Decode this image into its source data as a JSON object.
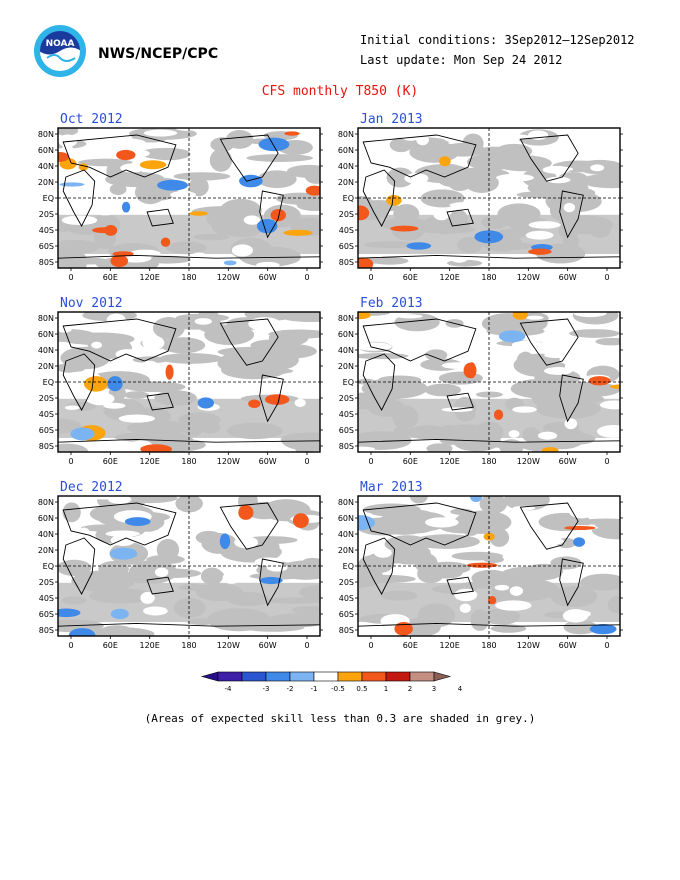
{
  "header": {
    "agency": "NWS/NCEP/CPC",
    "initial_conditions": "Initial conditions: 3Sep2012–12Sep2012",
    "last_update": "Last update: Mon Sep 24 2012",
    "title": "CFS monthly T850 (K)",
    "logo_icon": "noaa-logo-icon"
  },
  "axes": {
    "lat_labels": [
      "80N",
      "60N",
      "40N",
      "20N",
      "EQ",
      "20S",
      "40S",
      "60S",
      "80S"
    ],
    "lon_labels": [
      "0",
      "60E",
      "120E",
      "180",
      "120W",
      "60W",
      "0"
    ]
  },
  "panels": [
    {
      "title": "Oct 2012"
    },
    {
      "title": "Jan 2013"
    },
    {
      "title": "Nov 2012"
    },
    {
      "title": "Feb 2013"
    },
    {
      "title": "Dec 2012"
    },
    {
      "title": "Mar 2013"
    }
  ],
  "legend": {
    "tick_labels": [
      "-4",
      "-3",
      "-2",
      "-1",
      "-0.5",
      "0.5",
      "1",
      "2",
      "3",
      "4"
    ],
    "colors": [
      "#3d1fa8",
      "#2a56d0",
      "#3f8ae8",
      "#7cb4f2",
      "#ffffff",
      "#fba40e",
      "#f2571c",
      "#c21a10",
      "#c48f82"
    ],
    "low_arrow_color": "#2a0f8c",
    "high_arrow_color": "#8a5e52"
  },
  "colors": {
    "grey_mask": "#c0c0c0",
    "title_red": "#e8120a",
    "panel_title_blue": "#2a4fd8"
  },
  "note": "(Areas of expected skill less than 0.3 are shaded in grey.)"
}
